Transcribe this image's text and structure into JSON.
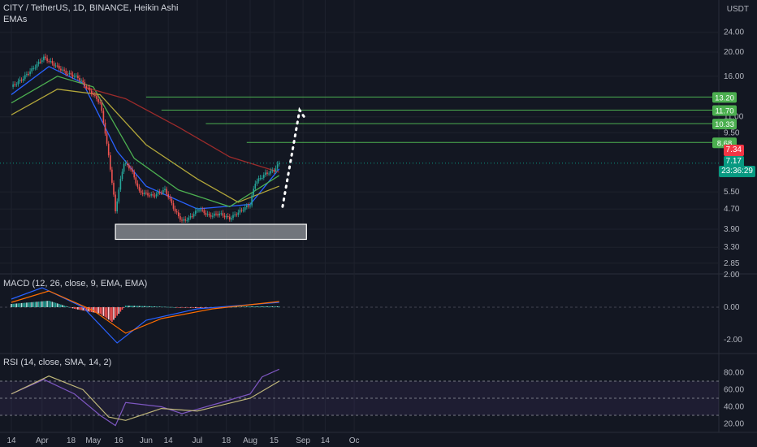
{
  "header": {
    "symbol_line": "CITY / TetherUS, 1D, BINANCE, Heikin Ashi",
    "indicator_label": "EMAs",
    "currency": "USDT"
  },
  "macd_label": "MACD (12, 26, close, 9, EMA, EMA)",
  "rsi_label": "RSI (14, close, SMA, 14, 2)",
  "price_tags": {
    "last": {
      "label": "7.34",
      "color": "#f23645"
    },
    "current": {
      "label": "7.17",
      "color": "#089981"
    },
    "countdown": {
      "label": "23:36:29",
      "color": "#089981"
    }
  },
  "chart_data": [
    {
      "type": "candlestick",
      "title": "CITY / TetherUS, 1D, BINANCE, Heikin Ashi",
      "scale": "log",
      "y_ticks": [
        "24.00",
        "20.00",
        "16.00",
        "11.00",
        "9.50",
        "5.50",
        "4.70",
        "3.90",
        "3.30",
        "2.85"
      ],
      "x_ticks": [
        "14",
        "Apr",
        "18",
        "May",
        "16",
        "Jun",
        "14",
        "Jul",
        "18",
        "Aug",
        "15",
        "Sep",
        "14",
        "Oc"
      ],
      "x_range": [
        "2021-03-14",
        "2021-10-01"
      ],
      "y_range": [
        2.6,
        30
      ],
      "ohlc_keypoints": [
        [
          "2021-03-14",
          14.5
        ],
        [
          "2021-03-20",
          15.5
        ],
        [
          "2021-03-28",
          17.5
        ],
        [
          "2021-04-02",
          19.0
        ],
        [
          "2021-04-08",
          17.8
        ],
        [
          "2021-04-15",
          16.5
        ],
        [
          "2021-04-22",
          15.8
        ],
        [
          "2021-04-28",
          14.2
        ],
        [
          "2021-05-05",
          12.5
        ],
        [
          "2021-05-09",
          8.5
        ],
        [
          "2021-05-12",
          6.0
        ],
        [
          "2021-05-14",
          4.6
        ],
        [
          "2021-05-16",
          5.6
        ],
        [
          "2021-05-19",
          7.2
        ],
        [
          "2021-05-23",
          6.8
        ],
        [
          "2021-05-28",
          5.5
        ],
        [
          "2021-06-05",
          5.3
        ],
        [
          "2021-06-12",
          5.6
        ],
        [
          "2021-06-18",
          4.6
        ],
        [
          "2021-06-22",
          4.2
        ],
        [
          "2021-06-26",
          4.3
        ],
        [
          "2021-07-02",
          4.7
        ],
        [
          "2021-07-08",
          4.4
        ],
        [
          "2021-07-14",
          4.5
        ],
        [
          "2021-07-20",
          4.3
        ],
        [
          "2021-07-26",
          4.6
        ],
        [
          "2021-08-01",
          4.9
        ],
        [
          "2021-08-04",
          6.0
        ],
        [
          "2021-08-10",
          6.5
        ],
        [
          "2021-08-15",
          6.7
        ],
        [
          "2021-08-18",
          7.17
        ]
      ],
      "emas": [
        {
          "name": "EMA fast",
          "color": "#2962ff",
          "values": [
            [
              "2021-03-14",
              13.5
            ],
            [
              "2021-04-05",
              17.5
            ],
            [
              "2021-04-25",
              15.0
            ],
            [
              "2021-05-15",
              8.0
            ],
            [
              "2021-06-01",
              5.8
            ],
            [
              "2021-07-01",
              4.7
            ],
            [
              "2021-08-01",
              4.9
            ],
            [
              "2021-08-18",
              6.8
            ]
          ]
        },
        {
          "name": "EMA mid",
          "color": "#4caf50",
          "values": [
            [
              "2021-03-14",
              12.5
            ],
            [
              "2021-04-10",
              16.0
            ],
            [
              "2021-05-01",
              14.5
            ],
            [
              "2021-05-25",
              7.5
            ],
            [
              "2021-06-20",
              5.6
            ],
            [
              "2021-07-20",
              4.8
            ],
            [
              "2021-08-18",
              6.4
            ]
          ]
        },
        {
          "name": "EMA slow",
          "color": "#b2a63a",
          "values": [
            [
              "2021-03-14",
              11.2
            ],
            [
              "2021-04-10",
              14.2
            ],
            [
              "2021-05-05",
              13.5
            ],
            [
              "2021-06-01",
              8.5
            ],
            [
              "2021-07-01",
              6.2
            ],
            [
              "2021-07-25",
              5.0
            ],
            [
              "2021-08-18",
              5.8
            ]
          ]
        },
        {
          "name": "EMA long",
          "color": "#9c2b2b",
          "values": [
            [
              "2021-04-25",
              14.5
            ],
            [
              "2021-05-20",
              13.0
            ],
            [
              "2021-06-20",
              10.0
            ],
            [
              "2021-07-20",
              7.6
            ],
            [
              "2021-08-18",
              6.6
            ]
          ]
        }
      ],
      "horizontal_levels": [
        {
          "label": "13.20",
          "value": 13.2
        },
        {
          "label": "11.70",
          "value": 11.7
        },
        {
          "label": "10.33",
          "value": 10.33
        },
        {
          "label": "8.68",
          "value": 8.68
        }
      ],
      "support_zone": {
        "from_date": "2021-05-14",
        "to_date": "2021-09-03",
        "low": 3.55,
        "high": 4.08
      }
    },
    {
      "type": "macd",
      "title": "MACD (12, 26, close, 9, EMA, EMA)",
      "y_ticks": [
        "2.00",
        "0.00",
        "-2.00"
      ],
      "histogram_keypoints": [
        [
          "2021-03-14",
          0.2
        ],
        [
          "2021-04-05",
          0.4
        ],
        [
          "2021-04-20",
          -0.1
        ],
        [
          "2021-05-05",
          -0.4
        ],
        [
          "2021-05-12",
          -0.9
        ],
        [
          "2021-05-20",
          0.1
        ],
        [
          "2021-06-05",
          0.05
        ],
        [
          "2021-07-01",
          -0.05
        ],
        [
          "2021-08-01",
          0.05
        ],
        [
          "2021-08-18",
          0.05
        ]
      ],
      "macd_line": [
        [
          "2021-03-14",
          0.5
        ],
        [
          "2021-04-01",
          1.2
        ],
        [
          "2021-04-25",
          0.0
        ],
        [
          "2021-05-15",
          -2.2
        ],
        [
          "2021-06-01",
          -0.8
        ],
        [
          "2021-07-01",
          -0.1
        ],
        [
          "2021-08-18",
          0.3
        ]
      ],
      "signal_line": [
        [
          "2021-03-14",
          0.3
        ],
        [
          "2021-04-05",
          1.0
        ],
        [
          "2021-05-01",
          -0.2
        ],
        [
          "2021-05-20",
          -1.6
        ],
        [
          "2021-06-10",
          -0.7
        ],
        [
          "2021-07-10",
          -0.1
        ],
        [
          "2021-08-18",
          0.35
        ]
      ]
    },
    {
      "type": "rsi",
      "title": "RSI (14, close, SMA, 14, 2)",
      "y_ticks": [
        "80.00",
        "60.00",
        "40.00",
        "20.00"
      ],
      "rsi_line": [
        [
          "2021-03-14",
          55
        ],
        [
          "2021-04-02",
          72
        ],
        [
          "2021-04-20",
          55
        ],
        [
          "2021-05-05",
          30
        ],
        [
          "2021-05-14",
          18
        ],
        [
          "2021-05-20",
          45
        ],
        [
          "2021-06-10",
          40
        ],
        [
          "2021-06-22",
          32
        ],
        [
          "2021-07-15",
          45
        ],
        [
          "2021-08-01",
          55
        ],
        [
          "2021-08-08",
          75
        ],
        [
          "2021-08-18",
          84
        ]
      ],
      "sma_line": [
        [
          "2021-03-14",
          55
        ],
        [
          "2021-04-05",
          76
        ],
        [
          "2021-04-25",
          60
        ],
        [
          "2021-05-10",
          28
        ],
        [
          "2021-05-20",
          24
        ],
        [
          "2021-06-10",
          38
        ],
        [
          "2021-07-01",
          35
        ],
        [
          "2021-08-01",
          50
        ],
        [
          "2021-08-18",
          70
        ]
      ]
    }
  ]
}
